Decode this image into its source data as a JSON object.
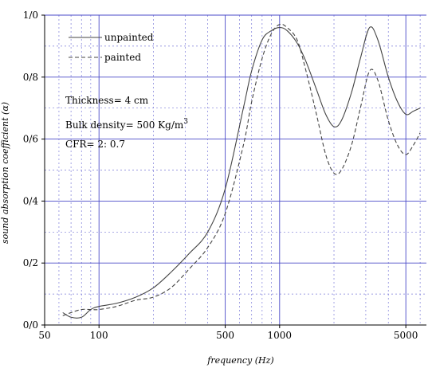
{
  "chart_data": {
    "type": "line",
    "xlabel": "frequency (Hz)",
    "ylabel": "sound absorption coefficient (α)",
    "x_scale": "log",
    "xlim": [
      50,
      6500
    ],
    "ylim": [
      0,
      1
    ],
    "x_ticks": [
      {
        "value": 50,
        "label": "50"
      },
      {
        "value": 100,
        "label": "100"
      },
      {
        "value": 500,
        "label": "500"
      },
      {
        "value": 1000,
        "label": "1000"
      },
      {
        "value": 5000,
        "label": "5000"
      }
    ],
    "y_ticks": [
      {
        "value": 0,
        "label": "0/0"
      },
      {
        "value": 0.2,
        "label": "0/2"
      },
      {
        "value": 0.4,
        "label": "0/4"
      },
      {
        "value": 0.6,
        "label": "0/6"
      },
      {
        "value": 0.8,
        "label": "0/8"
      },
      {
        "value": 1.0,
        "label": "1/0"
      }
    ],
    "grid": "on",
    "legend_position": "top-left",
    "series": [
      {
        "name": "unpainted",
        "style": "solid",
        "color": "#444444",
        "x": [
          63,
          70,
          80,
          90,
          100,
          125,
          160,
          200,
          250,
          315,
          400,
          500,
          630,
          700,
          800,
          900,
          1000,
          1100,
          1250,
          1400,
          1600,
          1800,
          2000,
          2200,
          2500,
          2800,
          3150,
          3500,
          4000,
          4500,
          5000,
          5500,
          6000
        ],
        "y": [
          0.04,
          0.025,
          0.025,
          0.05,
          0.06,
          0.07,
          0.09,
          0.12,
          0.17,
          0.23,
          0.3,
          0.44,
          0.7,
          0.82,
          0.92,
          0.95,
          0.96,
          0.95,
          0.91,
          0.85,
          0.76,
          0.68,
          0.64,
          0.66,
          0.75,
          0.86,
          0.96,
          0.92,
          0.8,
          0.72,
          0.68,
          0.69,
          0.7
        ]
      },
      {
        "name": "painted",
        "style": "dashed",
        "color": "#444444",
        "x": [
          63,
          70,
          80,
          90,
          100,
          125,
          160,
          200,
          250,
          315,
          400,
          500,
          630,
          700,
          800,
          900,
          1000,
          1100,
          1250,
          1400,
          1600,
          1800,
          2000,
          2200,
          2500,
          2800,
          3150,
          3500,
          4000,
          4500,
          5000,
          5500,
          6000
        ],
        "y": [
          0.03,
          0.04,
          0.05,
          0.05,
          0.05,
          0.06,
          0.08,
          0.09,
          0.12,
          0.18,
          0.25,
          0.36,
          0.58,
          0.72,
          0.86,
          0.94,
          0.97,
          0.96,
          0.92,
          0.82,
          0.68,
          0.55,
          0.49,
          0.5,
          0.58,
          0.7,
          0.82,
          0.79,
          0.66,
          0.58,
          0.55,
          0.58,
          0.62
        ]
      }
    ],
    "annotations": [
      {
        "text": "Thickness= 4 cm"
      },
      {
        "text": "Bulk density= 500 Kg/m",
        "superscript": "3"
      },
      {
        "text": "CFR= 2: 0.7"
      }
    ],
    "colors": {
      "major_grid": "#4a4ac8",
      "minor_grid": "#7a7ad8",
      "axis": "#000000"
    }
  }
}
